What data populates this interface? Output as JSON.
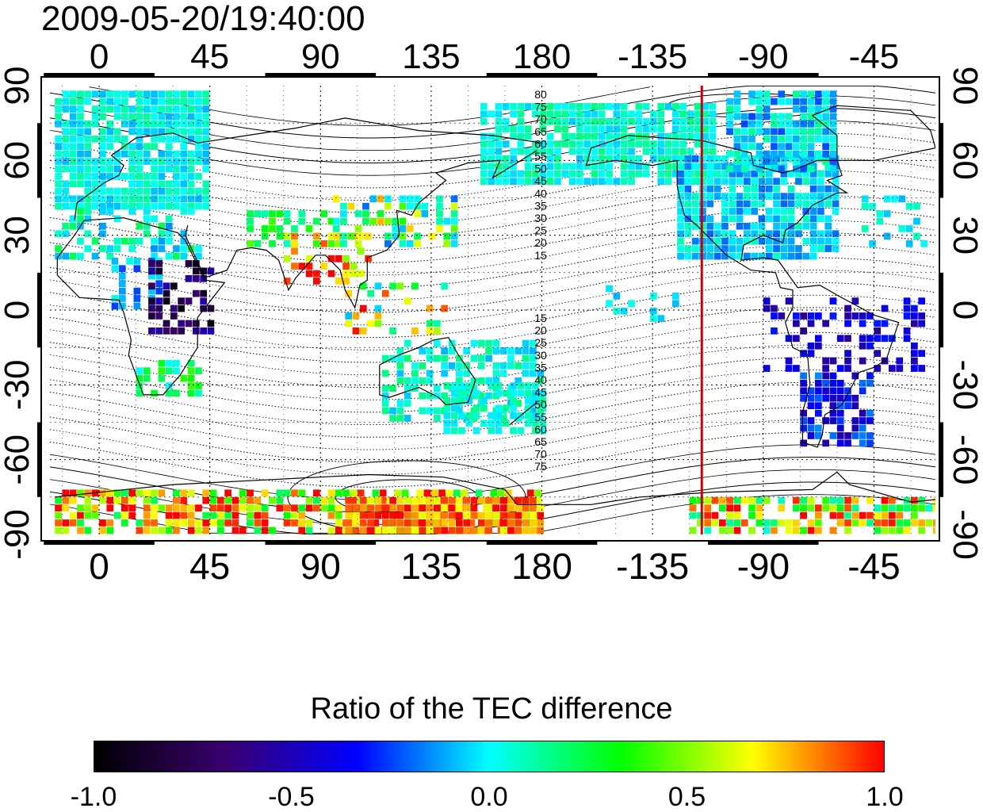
{
  "title": "2009-05-20/19:40:00",
  "map": {
    "type": "global TEC difference ratio map",
    "projection": "equirectangular",
    "lon_center": 180,
    "lon_range": [
      -20,
      340
    ],
    "lat_range": [
      -90,
      90
    ],
    "lon_ticks": [
      0,
      45,
      90,
      135,
      180,
      225,
      270,
      315
    ],
    "lon_tick_labels": [
      "0",
      "45",
      "90",
      "135",
      "180",
      "-135",
      "-90",
      "-45"
    ],
    "lat_ticks": [
      90,
      60,
      30,
      0,
      -30,
      -60,
      -90
    ],
    "lat_tick_labels": [
      "90",
      "60",
      "30",
      "0",
      "-30",
      "-60",
      "-90"
    ],
    "grid": "dotted",
    "terminator_lon": 245,
    "terminator_color": "#cc0000",
    "magnetic_lat_labels_north": [
      "80",
      "75",
      "70",
      "65",
      "60",
      "55",
      "50",
      "45",
      "40",
      "35",
      "30",
      "25",
      "20",
      "15"
    ],
    "magnetic_lat_labels_south": [
      "15",
      "20",
      "25",
      "30",
      "35",
      "40",
      "45",
      "50",
      "55",
      "60",
      "65",
      "70",
      "75"
    ]
  },
  "colorbar": {
    "title": "Ratio of the TEC difference",
    "range": [
      -1.0,
      1.0
    ],
    "tick_labels": [
      "-1.0",
      "-0.5",
      "0.0",
      "0.5",
      "1.0"
    ],
    "colors": [
      "#000000",
      "#3a0070",
      "#0000ff",
      "#00ffff",
      "#00ff00",
      "#ffff00",
      "#ff0000"
    ]
  }
}
